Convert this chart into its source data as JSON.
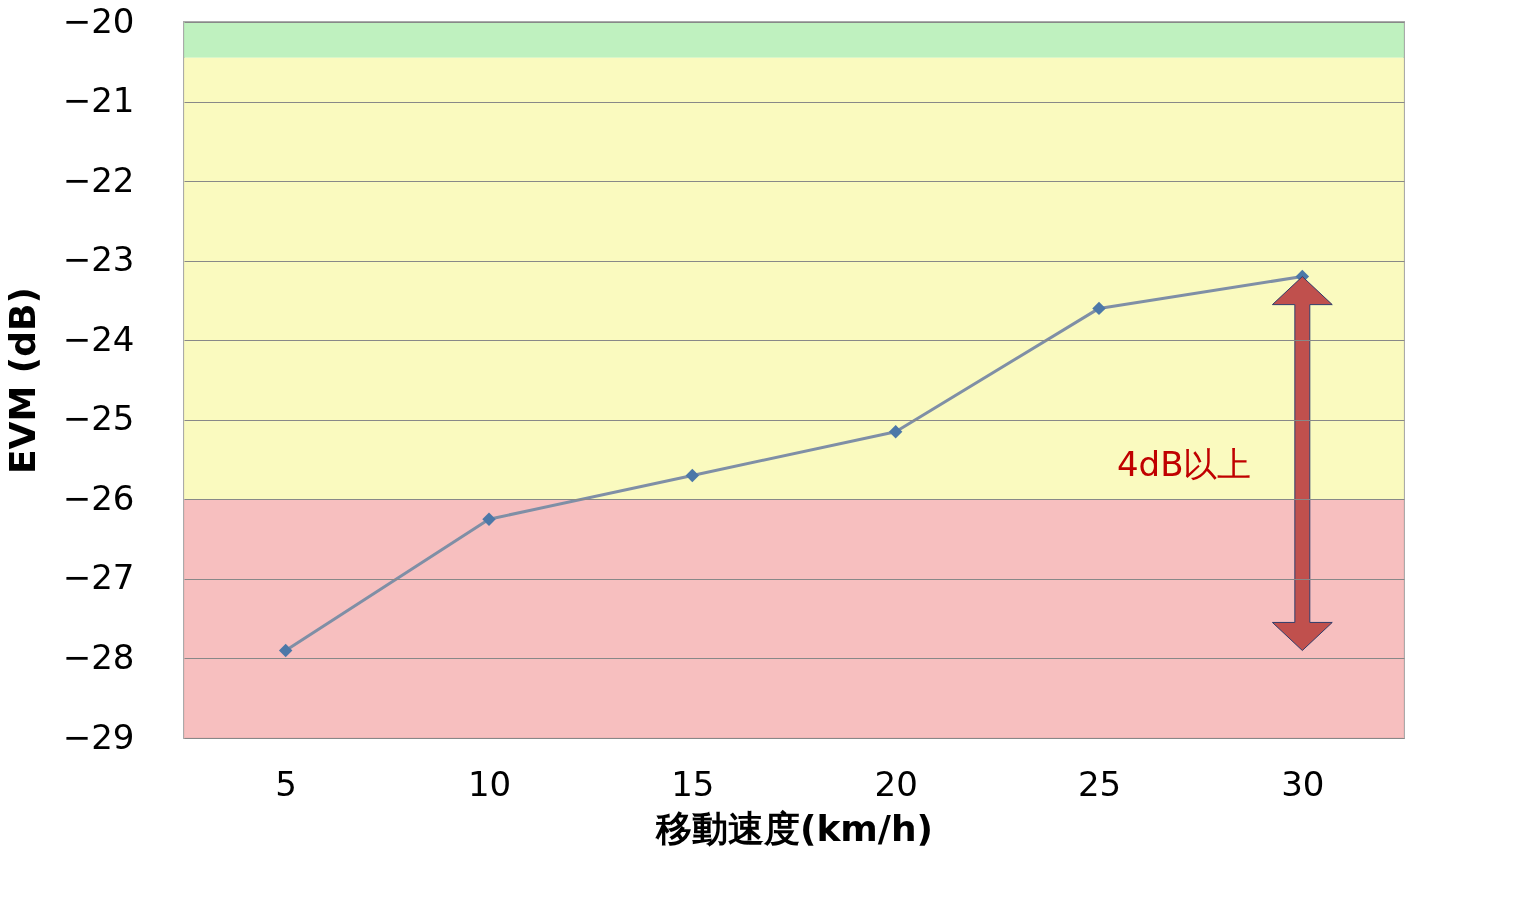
{
  "chart_data": {
    "type": "line",
    "xlabel": "移動速度(km/h)",
    "ylabel": "EVM (dB)",
    "categories": [
      "5",
      "10",
      "15",
      "20",
      "25",
      "30"
    ],
    "series": [
      {
        "color": "#7f8fa6",
        "values": [
          -27.9,
          -26.25,
          -25.7,
          -25.15,
          -23.6,
          -23.2
        ]
      }
    ],
    "ylim": [
      -29,
      -20
    ],
    "yticks": [
      -29,
      -28,
      -27,
      -26,
      -25,
      -24,
      -23,
      -22,
      -21,
      -20
    ],
    "bands": [
      {
        "axis": "y",
        "from": -20.45,
        "to": -20,
        "color": "#b8f0b8"
      },
      {
        "axis": "y",
        "from": -26,
        "to": -20.45,
        "color": "#fafab8"
      },
      {
        "axis": "y",
        "from": -29,
        "to": -26,
        "color": "#f6b8b8"
      }
    ],
    "annotations": [
      "4dB以上"
    ],
    "grid": "y",
    "marker": "diamond",
    "line_style": "solid"
  }
}
